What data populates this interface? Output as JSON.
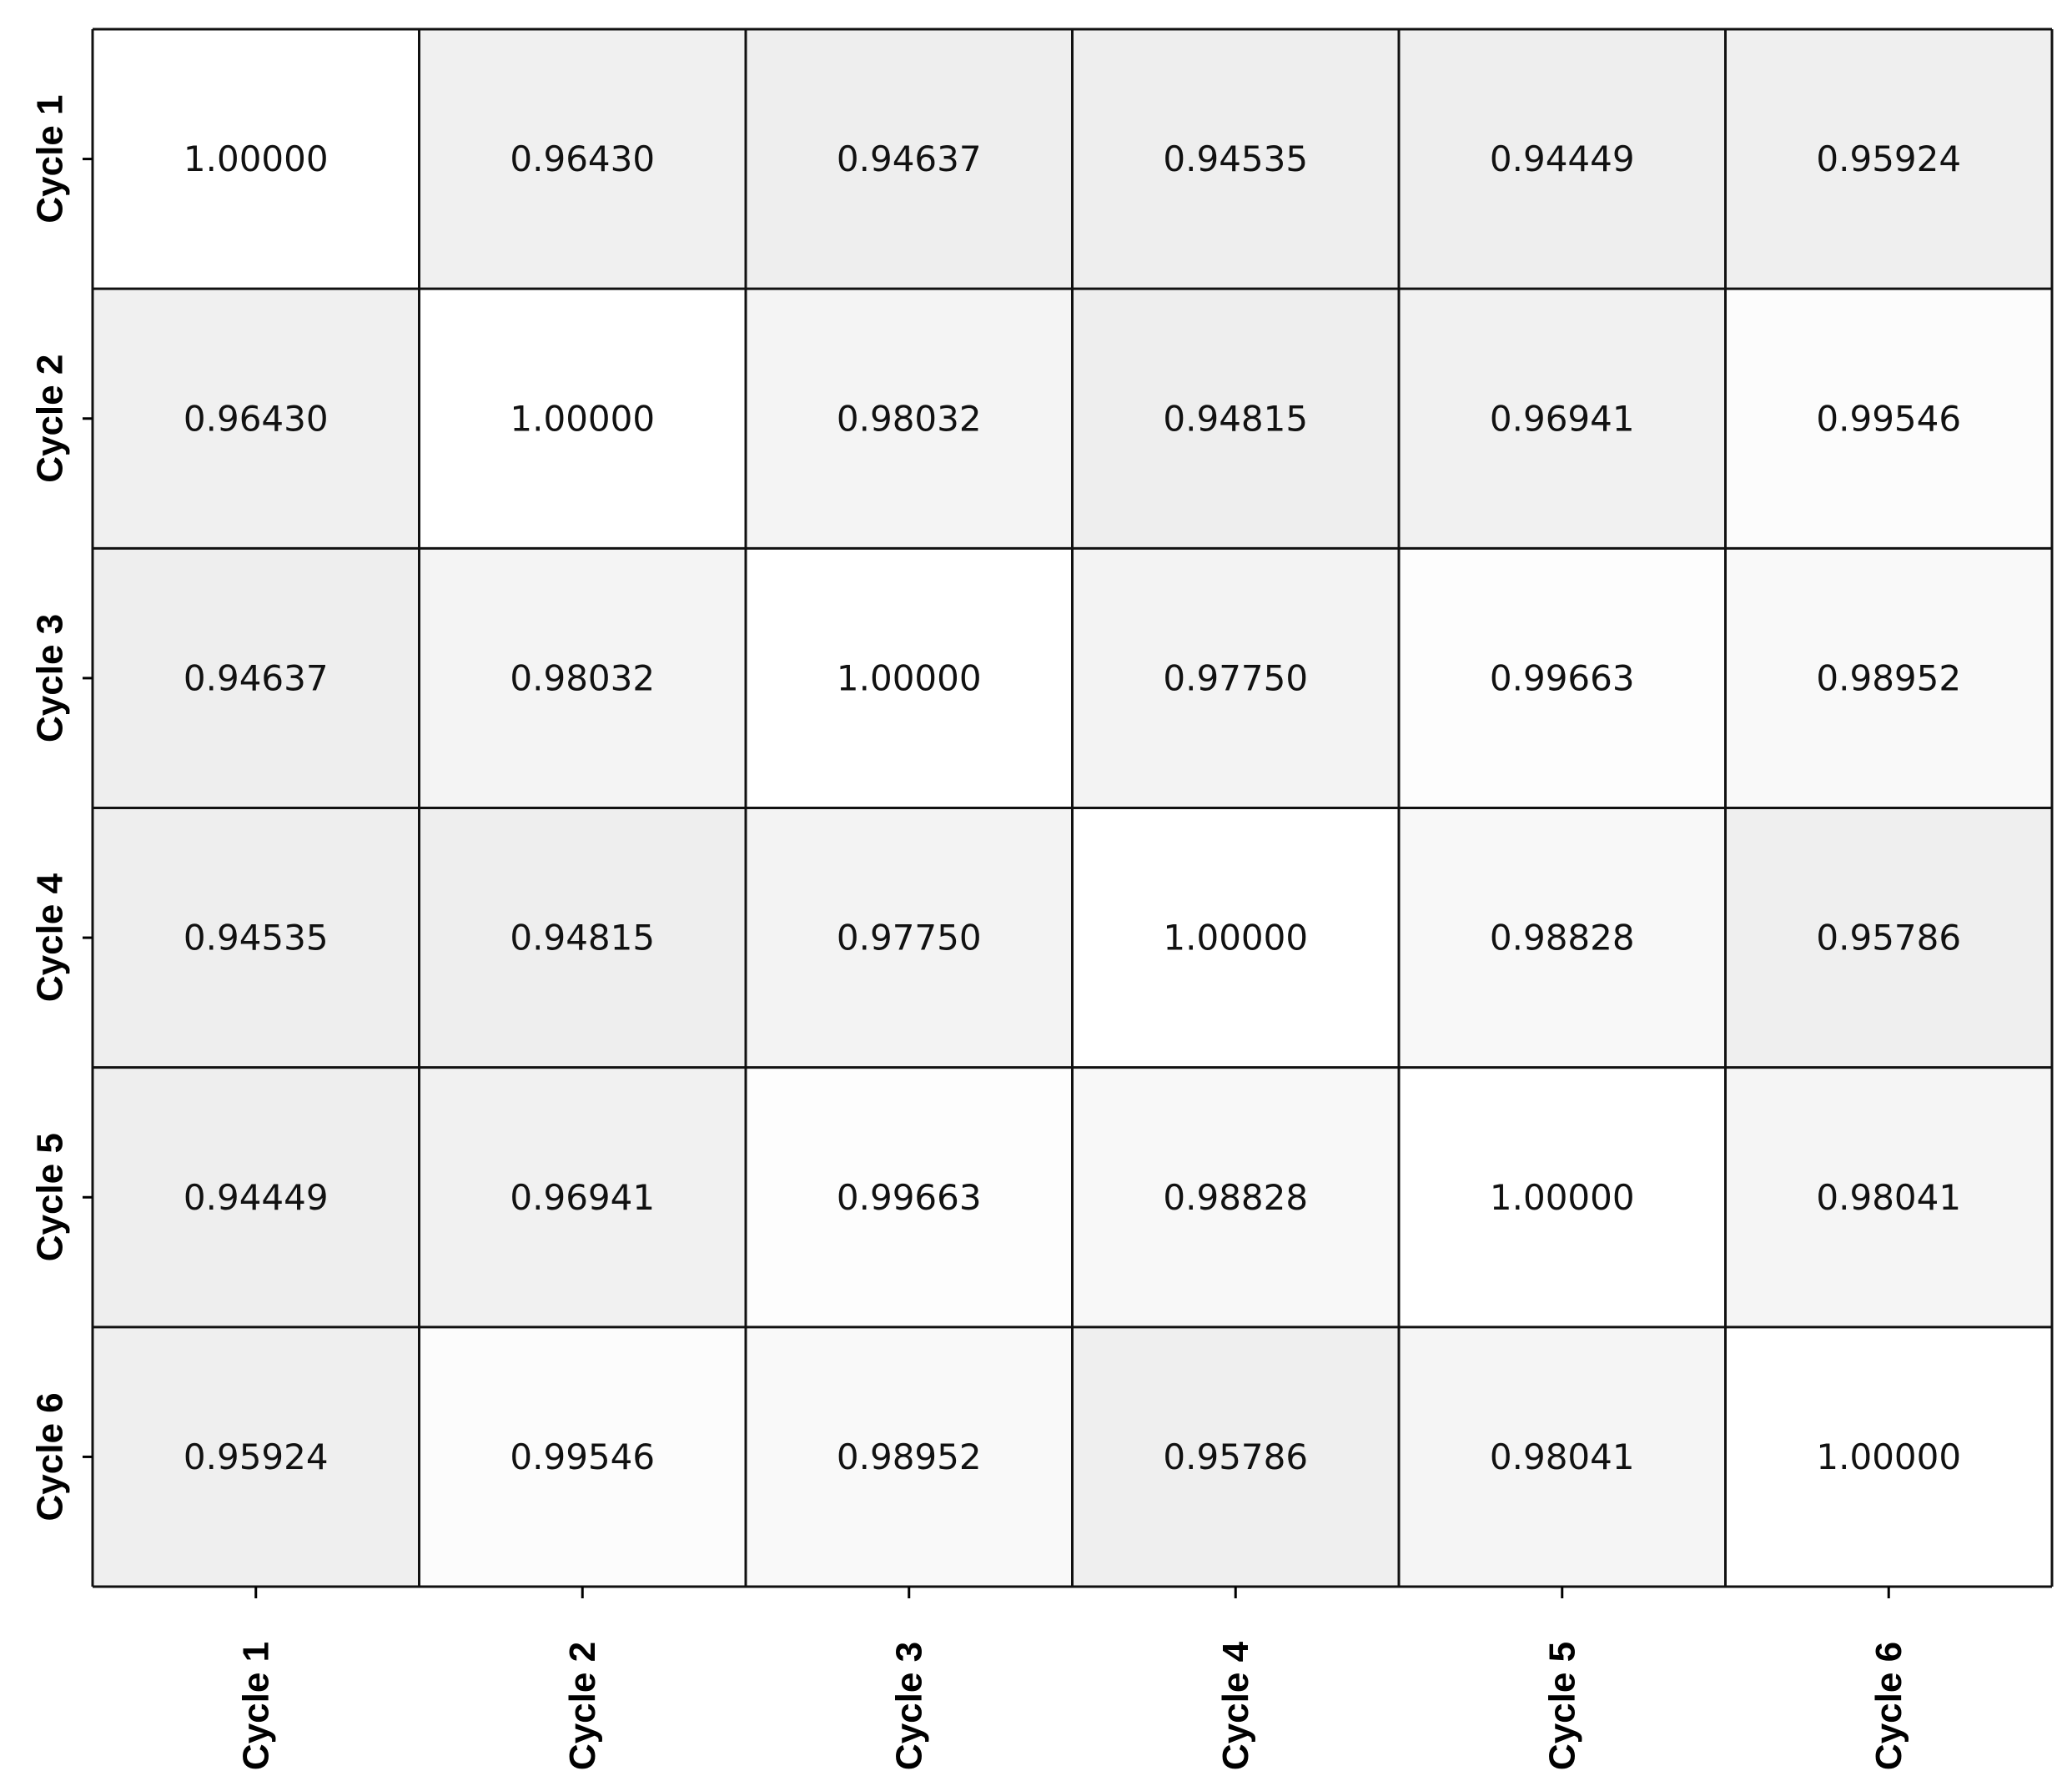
{
  "chart_data": {
    "type": "heatmap",
    "title": "",
    "xlabel": "",
    "ylabel": "",
    "row_labels": [
      "Cycle 1",
      "Cycle 2",
      "Cycle 3",
      "Cycle 4",
      "Cycle 5",
      "Cycle 6"
    ],
    "column_labels": [
      "Cycle 1",
      "Cycle 2",
      "Cycle 3",
      "Cycle 4",
      "Cycle 5",
      "Cycle 6"
    ],
    "values": [
      [
        1.0,
        0.9643,
        0.94637,
        0.94535,
        0.94449,
        0.95924
      ],
      [
        0.9643,
        1.0,
        0.98032,
        0.94815,
        0.96941,
        0.99546
      ],
      [
        0.94637,
        0.98032,
        1.0,
        0.9775,
        0.99663,
        0.98952
      ],
      [
        0.94535,
        0.94815,
        0.9775,
        1.0,
        0.98828,
        0.95786
      ],
      [
        0.94449,
        0.96941,
        0.99663,
        0.98828,
        1.0,
        0.98041
      ],
      [
        0.95924,
        0.99546,
        0.98952,
        0.95786,
        0.98041,
        1.0
      ]
    ],
    "value_labels": [
      [
        "1.00000",
        "0.96430",
        "0.94637",
        "0.94535",
        "0.94449",
        "0.95924"
      ],
      [
        "0.96430",
        "1.00000",
        "0.98032",
        "0.94815",
        "0.96941",
        "0.99546"
      ],
      [
        "0.94637",
        "0.98032",
        "1.00000",
        "0.97750",
        "0.99663",
        "0.98952"
      ],
      [
        "0.94535",
        "0.94815",
        "0.97750",
        "1.00000",
        "0.98828",
        "0.95786"
      ],
      [
        "0.94449",
        "0.96941",
        "0.99663",
        "0.98828",
        "1.00000",
        "0.98041"
      ],
      [
        "0.95924",
        "0.99546",
        "0.98952",
        "0.95786",
        "0.98041",
        "1.00000"
      ]
    ],
    "value_range": [
      0.94449,
      1.0
    ],
    "colors": {
      "low": "#eeeeee",
      "high": "#ffffff",
      "grid": "#111111"
    },
    "legend": "none"
  }
}
